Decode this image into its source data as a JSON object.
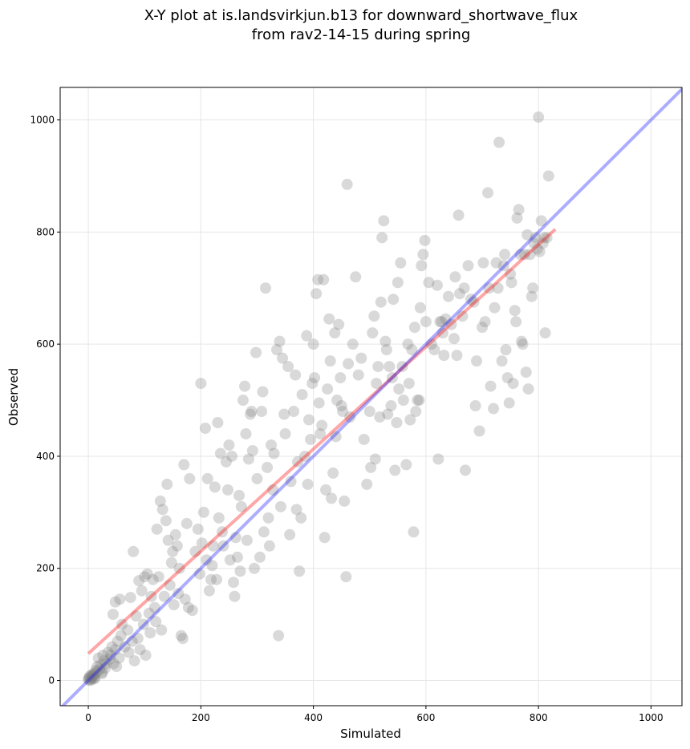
{
  "chart_data": {
    "type": "scatter",
    "title_line1": "X-Y plot at is.landsvirkjun.b13 for downward_shortwave_flux",
    "title_line2": "from rav2-14-15 during spring",
    "xlabel": "Simulated",
    "ylabel": "Observed",
    "xlim": [
      -50,
      1055
    ],
    "ylim": [
      -45,
      1058
    ],
    "xticks": [
      0,
      200,
      400,
      600,
      800,
      1000
    ],
    "yticks": [
      0,
      200,
      400,
      600,
      800,
      1000
    ],
    "grid": true,
    "point_color": "#808080",
    "regression_line": {
      "color": "#ff0000",
      "x": [
        0,
        830
      ],
      "y": [
        48,
        805
      ]
    },
    "identity_line": {
      "color": "#0000ff",
      "x": [
        -50,
        1055
      ],
      "y": [
        -50,
        1055
      ]
    },
    "points": [
      [
        0,
        3
      ],
      [
        2,
        5
      ],
      [
        3,
        8
      ],
      [
        5,
        2
      ],
      [
        6,
        10
      ],
      [
        8,
        4
      ],
      [
        10,
        12
      ],
      [
        12,
        6
      ],
      [
        15,
        15
      ],
      [
        4,
        0
      ],
      [
        7,
        7
      ],
      [
        1,
        1
      ],
      [
        9,
        9
      ],
      [
        11,
        3
      ],
      [
        13,
        18
      ],
      [
        20,
        20
      ],
      [
        22,
        28
      ],
      [
        25,
        15
      ],
      [
        28,
        35
      ],
      [
        30,
        22
      ],
      [
        18,
        40
      ],
      [
        24,
        12
      ],
      [
        32,
        30
      ],
      [
        16,
        25
      ],
      [
        26,
        45
      ],
      [
        40,
        45
      ],
      [
        42,
        60
      ],
      [
        45,
        30
      ],
      [
        48,
        55
      ],
      [
        50,
        25
      ],
      [
        52,
        70
      ],
      [
        35,
        50
      ],
      [
        38,
        38
      ],
      [
        55,
        40
      ],
      [
        44,
        118
      ],
      [
        48,
        140
      ],
      [
        56,
        145
      ],
      [
        58,
        80
      ],
      [
        60,
        100
      ],
      [
        65,
        60
      ],
      [
        70,
        90
      ],
      [
        72,
        50
      ],
      [
        75,
        148
      ],
      [
        78,
        70
      ],
      [
        80,
        230
      ],
      [
        82,
        35
      ],
      [
        85,
        115
      ],
      [
        88,
        75
      ],
      [
        90,
        178
      ],
      [
        92,
        55
      ],
      [
        95,
        160
      ],
      [
        98,
        100
      ],
      [
        100,
        185
      ],
      [
        102,
        45
      ],
      [
        105,
        190
      ],
      [
        108,
        120
      ],
      [
        110,
        85
      ],
      [
        112,
        150
      ],
      [
        115,
        180
      ],
      [
        118,
        130
      ],
      [
        120,
        105
      ],
      [
        122,
        270
      ],
      [
        125,
        185
      ],
      [
        128,
        320
      ],
      [
        130,
        90
      ],
      [
        132,
        305
      ],
      [
        135,
        150
      ],
      [
        138,
        285
      ],
      [
        140,
        350
      ],
      [
        142,
        250
      ],
      [
        145,
        170
      ],
      [
        148,
        210
      ],
      [
        150,
        230
      ],
      [
        152,
        135
      ],
      [
        155,
        260
      ],
      [
        158,
        240
      ],
      [
        160,
        155
      ],
      [
        162,
        200
      ],
      [
        165,
        80
      ],
      [
        168,
        75
      ],
      [
        170,
        385
      ],
      [
        172,
        145
      ],
      [
        175,
        280
      ],
      [
        178,
        130
      ],
      [
        180,
        360
      ],
      [
        185,
        125
      ],
      [
        190,
        230
      ],
      [
        195,
        270
      ],
      [
        198,
        190
      ],
      [
        200,
        530
      ],
      [
        202,
        245
      ],
      [
        205,
        300
      ],
      [
        208,
        450
      ],
      [
        210,
        215
      ],
      [
        212,
        360
      ],
      [
        215,
        160
      ],
      [
        218,
        180
      ],
      [
        220,
        205
      ],
      [
        222,
        240
      ],
      [
        225,
        345
      ],
      [
        228,
        180
      ],
      [
        230,
        460
      ],
      [
        232,
        290
      ],
      [
        235,
        405
      ],
      [
        238,
        265
      ],
      [
        240,
        240
      ],
      [
        245,
        390
      ],
      [
        248,
        340
      ],
      [
        250,
        420
      ],
      [
        252,
        215
      ],
      [
        255,
        400
      ],
      [
        258,
        175
      ],
      [
        260,
        150
      ],
      [
        262,
        255
      ],
      [
        265,
        220
      ],
      [
        268,
        330
      ],
      [
        270,
        195
      ],
      [
        272,
        310
      ],
      [
        275,
        500
      ],
      [
        278,
        525
      ],
      [
        280,
        440
      ],
      [
        282,
        250
      ],
      [
        285,
        395
      ],
      [
        288,
        475
      ],
      [
        290,
        480
      ],
      [
        292,
        410
      ],
      [
        295,
        200
      ],
      [
        298,
        585
      ],
      [
        300,
        360
      ],
      [
        305,
        220
      ],
      [
        308,
        480
      ],
      [
        310,
        515
      ],
      [
        312,
        265
      ],
      [
        315,
        700
      ],
      [
        318,
        380
      ],
      [
        320,
        290
      ],
      [
        322,
        240
      ],
      [
        325,
        420
      ],
      [
        328,
        340
      ],
      [
        330,
        405
      ],
      [
        335,
        590
      ],
      [
        338,
        80
      ],
      [
        340,
        605
      ],
      [
        342,
        310
      ],
      [
        345,
        575
      ],
      [
        348,
        475
      ],
      [
        350,
        440
      ],
      [
        355,
        560
      ],
      [
        358,
        260
      ],
      [
        360,
        355
      ],
      [
        365,
        480
      ],
      [
        368,
        545
      ],
      [
        370,
        305
      ],
      [
        372,
        390
      ],
      [
        375,
        195
      ],
      [
        378,
        290
      ],
      [
        380,
        510
      ],
      [
        385,
        400
      ],
      [
        388,
        615
      ],
      [
        390,
        350
      ],
      [
        392,
        465
      ],
      [
        395,
        430
      ],
      [
        398,
        530
      ],
      [
        400,
        600
      ],
      [
        402,
        540
      ],
      [
        405,
        690
      ],
      [
        408,
        715
      ],
      [
        410,
        495
      ],
      [
        412,
        440
      ],
      [
        415,
        455
      ],
      [
        418,
        715
      ],
      [
        420,
        255
      ],
      [
        422,
        340
      ],
      [
        425,
        520
      ],
      [
        428,
        645
      ],
      [
        430,
        570
      ],
      [
        432,
        325
      ],
      [
        435,
        370
      ],
      [
        438,
        620
      ],
      [
        440,
        435
      ],
      [
        442,
        500
      ],
      [
        445,
        635
      ],
      [
        448,
        540
      ],
      [
        450,
        490
      ],
      [
        452,
        480
      ],
      [
        455,
        320
      ],
      [
        458,
        185
      ],
      [
        460,
        885
      ],
      [
        462,
        565
      ],
      [
        465,
        470
      ],
      [
        470,
        600
      ],
      [
        475,
        720
      ],
      [
        480,
        545
      ],
      [
        485,
        575
      ],
      [
        490,
        430
      ],
      [
        495,
        350
      ],
      [
        500,
        480
      ],
      [
        502,
        380
      ],
      [
        505,
        620
      ],
      [
        508,
        650
      ],
      [
        510,
        395
      ],
      [
        512,
        530
      ],
      [
        515,
        560
      ],
      [
        518,
        470
      ],
      [
        520,
        675
      ],
      [
        522,
        790
      ],
      [
        525,
        820
      ],
      [
        528,
        605
      ],
      [
        530,
        590
      ],
      [
        532,
        475
      ],
      [
        535,
        560
      ],
      [
        538,
        490
      ],
      [
        540,
        540
      ],
      [
        542,
        680
      ],
      [
        545,
        375
      ],
      [
        548,
        460
      ],
      [
        550,
        710
      ],
      [
        552,
        520
      ],
      [
        555,
        745
      ],
      [
        558,
        560
      ],
      [
        560,
        500
      ],
      [
        565,
        385
      ],
      [
        568,
        600
      ],
      [
        570,
        530
      ],
      [
        572,
        465
      ],
      [
        575,
        590
      ],
      [
        578,
        265
      ],
      [
        580,
        630
      ],
      [
        582,
        480
      ],
      [
        585,
        500
      ],
      [
        588,
        500
      ],
      [
        590,
        665
      ],
      [
        592,
        740
      ],
      [
        595,
        760
      ],
      [
        598,
        785
      ],
      [
        600,
        640
      ],
      [
        605,
        710
      ],
      [
        610,
        600
      ],
      [
        615,
        590
      ],
      [
        620,
        705
      ],
      [
        622,
        395
      ],
      [
        625,
        640
      ],
      [
        628,
        640
      ],
      [
        630,
        620
      ],
      [
        632,
        580
      ],
      [
        635,
        645
      ],
      [
        640,
        685
      ],
      [
        645,
        635
      ],
      [
        650,
        610
      ],
      [
        652,
        720
      ],
      [
        655,
        580
      ],
      [
        658,
        830
      ],
      [
        660,
        690
      ],
      [
        665,
        650
      ],
      [
        668,
        700
      ],
      [
        670,
        375
      ],
      [
        675,
        740
      ],
      [
        680,
        680
      ],
      [
        685,
        675
      ],
      [
        688,
        490
      ],
      [
        690,
        570
      ],
      [
        695,
        445
      ],
      [
        700,
        630
      ],
      [
        702,
        745
      ],
      [
        705,
        640
      ],
      [
        710,
        870
      ],
      [
        712,
        700
      ],
      [
        715,
        525
      ],
      [
        720,
        485
      ],
      [
        722,
        665
      ],
      [
        725,
        745
      ],
      [
        728,
        700
      ],
      [
        730,
        960
      ],
      [
        735,
        570
      ],
      [
        738,
        740
      ],
      [
        740,
        760
      ],
      [
        742,
        590
      ],
      [
        745,
        540
      ],
      [
        748,
        495
      ],
      [
        750,
        725
      ],
      [
        752,
        710
      ],
      [
        755,
        530
      ],
      [
        758,
        660
      ],
      [
        760,
        640
      ],
      [
        762,
        825
      ],
      [
        765,
        840
      ],
      [
        768,
        760
      ],
      [
        770,
        605
      ],
      [
        772,
        600
      ],
      [
        775,
        760
      ],
      [
        778,
        550
      ],
      [
        780,
        795
      ],
      [
        782,
        520
      ],
      [
        785,
        760
      ],
      [
        788,
        685
      ],
      [
        790,
        700
      ],
      [
        792,
        780
      ],
      [
        795,
        790
      ],
      [
        798,
        770
      ],
      [
        800,
        1005
      ],
      [
        802,
        765
      ],
      [
        805,
        820
      ],
      [
        808,
        780
      ],
      [
        810,
        790
      ],
      [
        812,
        620
      ],
      [
        815,
        790
      ],
      [
        818,
        900
      ]
    ]
  }
}
